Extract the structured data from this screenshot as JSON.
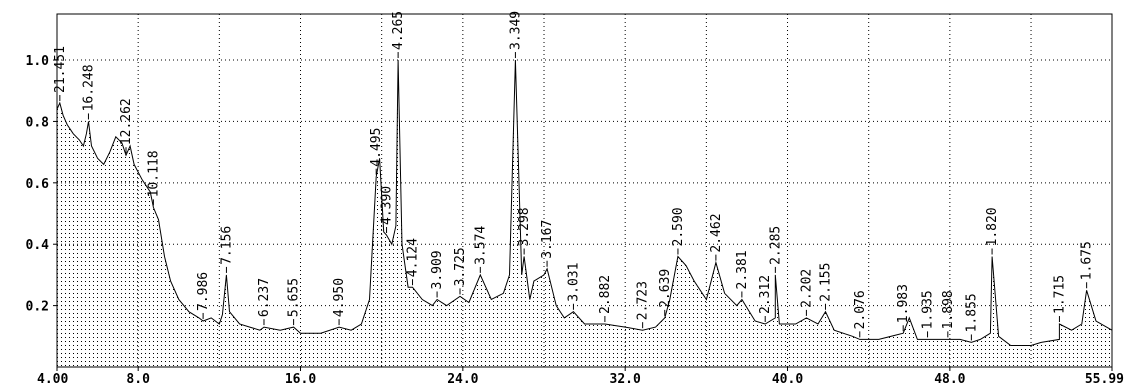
{
  "chart_data": {
    "type": "line",
    "title": "",
    "xlabel": "",
    "ylabel": "",
    "xlim": [
      4.0,
      55.99
    ],
    "ylim": [
      0,
      1.15
    ],
    "grid": true,
    "x_tick_values": [
      4.0,
      8.0,
      16.0,
      24.0,
      32.0,
      40.0,
      48.0,
      55.99
    ],
    "x_tick_labels": [
      "4.00",
      "8.0",
      "16.0",
      "24.0",
      "32.0",
      "40.0",
      "48.0",
      "55.99"
    ],
    "y_tick_values": [
      0.2,
      0.4,
      0.6,
      0.8,
      1.0
    ],
    "y_tick_labels": [
      "0.2",
      "0.4",
      "0.6",
      "0.8",
      "1.0"
    ],
    "series": [
      {
        "points": [
          [
            4.0,
            0.84
          ],
          [
            4.14,
            0.86
          ],
          [
            4.3,
            0.82
          ],
          [
            4.5,
            0.79
          ],
          [
            4.8,
            0.76
          ],
          [
            5.1,
            0.74
          ],
          [
            5.3,
            0.72
          ],
          [
            5.45,
            0.76
          ],
          [
            5.55,
            0.8
          ],
          [
            5.7,
            0.72
          ],
          [
            6.0,
            0.68
          ],
          [
            6.3,
            0.66
          ],
          [
            6.6,
            0.7
          ],
          [
            6.9,
            0.75
          ],
          [
            7.2,
            0.73
          ],
          [
            7.4,
            0.69
          ],
          [
            7.6,
            0.72
          ],
          [
            7.8,
            0.66
          ],
          [
            8.2,
            0.61
          ],
          [
            8.6,
            0.57
          ],
          [
            8.75,
            0.52
          ],
          [
            9.0,
            0.48
          ],
          [
            9.3,
            0.36
          ],
          [
            9.6,
            0.28
          ],
          [
            10.0,
            0.22
          ],
          [
            10.5,
            0.18
          ],
          [
            11.0,
            0.16
          ],
          [
            11.2,
            0.15
          ],
          [
            11.6,
            0.16
          ],
          [
            12.0,
            0.14
          ],
          [
            12.15,
            0.17
          ],
          [
            12.35,
            0.3
          ],
          [
            12.5,
            0.18
          ],
          [
            13.0,
            0.14
          ],
          [
            13.5,
            0.13
          ],
          [
            14.0,
            0.12
          ],
          [
            14.2,
            0.13
          ],
          [
            15.0,
            0.12
          ],
          [
            15.66,
            0.13
          ],
          [
            16.0,
            0.11
          ],
          [
            17.0,
            0.11
          ],
          [
            17.9,
            0.13
          ],
          [
            18.5,
            0.12
          ],
          [
            19.0,
            0.14
          ],
          [
            19.4,
            0.22
          ],
          [
            19.73,
            0.62
          ],
          [
            19.9,
            0.68
          ],
          [
            20.1,
            0.44
          ],
          [
            20.24,
            0.43
          ],
          [
            20.5,
            0.4
          ],
          [
            20.7,
            0.46
          ],
          [
            20.81,
            1.0
          ],
          [
            21.0,
            0.4
          ],
          [
            21.3,
            0.26
          ],
          [
            21.52,
            0.26
          ],
          [
            22.0,
            0.22
          ],
          [
            22.5,
            0.2
          ],
          [
            22.73,
            0.22
          ],
          [
            23.2,
            0.2
          ],
          [
            23.86,
            0.23
          ],
          [
            24.3,
            0.21
          ],
          [
            24.86,
            0.3
          ],
          [
            25.4,
            0.22
          ],
          [
            26.0,
            0.24
          ],
          [
            26.3,
            0.3
          ],
          [
            26.59,
            1.0
          ],
          [
            26.9,
            0.3
          ],
          [
            27.02,
            0.36
          ],
          [
            27.3,
            0.22
          ],
          [
            27.5,
            0.28
          ],
          [
            28.0,
            0.3
          ],
          [
            28.15,
            0.32
          ],
          [
            28.6,
            0.2
          ],
          [
            29.0,
            0.16
          ],
          [
            29.45,
            0.18
          ],
          [
            30.0,
            0.14
          ],
          [
            31.0,
            0.14
          ],
          [
            31.0,
            0.14
          ],
          [
            32.0,
            0.13
          ],
          [
            32.86,
            0.12
          ],
          [
            33.5,
            0.13
          ],
          [
            33.95,
            0.16
          ],
          [
            34.2,
            0.22
          ],
          [
            34.6,
            0.36
          ],
          [
            35.0,
            0.33
          ],
          [
            35.4,
            0.28
          ],
          [
            36.0,
            0.22
          ],
          [
            36.47,
            0.34
          ],
          [
            36.9,
            0.24
          ],
          [
            37.5,
            0.2
          ],
          [
            37.75,
            0.22
          ],
          [
            38.4,
            0.15
          ],
          [
            38.9,
            0.14
          ],
          [
            39.4,
            0.16
          ],
          [
            39.4,
            0.3
          ],
          [
            39.6,
            0.14
          ],
          [
            40.4,
            0.14
          ],
          [
            40.93,
            0.16
          ],
          [
            41.5,
            0.14
          ],
          [
            41.87,
            0.18
          ],
          [
            42.3,
            0.12
          ],
          [
            43.2,
            0.1
          ],
          [
            43.56,
            0.09
          ],
          [
            44.5,
            0.09
          ],
          [
            45.7,
            0.11
          ],
          [
            46.0,
            0.16
          ],
          [
            46.4,
            0.09
          ],
          [
            46.9,
            0.09
          ],
          [
            47.9,
            0.09
          ],
          [
            48.5,
            0.09
          ],
          [
            49.06,
            0.08
          ],
          [
            49.5,
            0.09
          ],
          [
            50.0,
            0.11
          ],
          [
            50.08,
            0.36
          ],
          [
            50.4,
            0.1
          ],
          [
            51.0,
            0.07
          ],
          [
            52.0,
            0.07
          ],
          [
            52.5,
            0.08
          ],
          [
            53.4,
            0.09
          ],
          [
            53.4,
            0.14
          ],
          [
            54.0,
            0.12
          ],
          [
            54.5,
            0.14
          ],
          [
            54.74,
            0.25
          ],
          [
            55.2,
            0.15
          ],
          [
            55.99,
            0.12
          ]
        ]
      }
    ],
    "peak_labels": [
      {
        "label": "21.451",
        "x": 4.14,
        "y": 0.86
      },
      {
        "label": "16.248",
        "x": 5.55,
        "y": 0.8
      },
      {
        "label": "12.262",
        "x": 7.4,
        "y": 0.69
      },
      {
        "label": "10.118",
        "x": 8.75,
        "y": 0.52
      },
      {
        "label": "7.986",
        "x": 11.2,
        "y": 0.15
      },
      {
        "label": "7.156",
        "x": 12.35,
        "y": 0.3
      },
      {
        "label": "6.237",
        "x": 14.2,
        "y": 0.13
      },
      {
        "label": "5.655",
        "x": 15.66,
        "y": 0.13
      },
      {
        "label": "4.950",
        "x": 17.9,
        "y": 0.13
      },
      {
        "label": "4.495",
        "x": 19.73,
        "y": 0.62
      },
      {
        "label": "4.390",
        "x": 20.24,
        "y": 0.43
      },
      {
        "label": "4.265",
        "x": 20.81,
        "y": 1.0
      },
      {
        "label": "4.124",
        "x": 21.52,
        "y": 0.26
      },
      {
        "label": "3.909",
        "x": 22.73,
        "y": 0.22
      },
      {
        "label": "3.725",
        "x": 23.86,
        "y": 0.23
      },
      {
        "label": "3.574",
        "x": 24.86,
        "y": 0.3
      },
      {
        "label": "3.349",
        "x": 26.59,
        "y": 1.0
      },
      {
        "label": "3.298",
        "x": 27.02,
        "y": 0.36
      },
      {
        "label": "3.167",
        "x": 28.15,
        "y": 0.32
      },
      {
        "label": "3.031",
        "x": 29.45,
        "y": 0.18
      },
      {
        "label": "2.882",
        "x": 31.0,
        "y": 0.14
      },
      {
        "label": "2.723",
        "x": 32.86,
        "y": 0.12
      },
      {
        "label": "2.639",
        "x": 33.95,
        "y": 0.16
      },
      {
        "label": "2.590",
        "x": 34.6,
        "y": 0.36
      },
      {
        "label": "2.462",
        "x": 36.47,
        "y": 0.34
      },
      {
        "label": "2.381",
        "x": 37.75,
        "y": 0.22
      },
      {
        "label": "2.312",
        "x": 38.9,
        "y": 0.14
      },
      {
        "label": "2.285",
        "x": 39.4,
        "y": 0.3
      },
      {
        "label": "2.202",
        "x": 40.93,
        "y": 0.16
      },
      {
        "label": "2.155",
        "x": 41.87,
        "y": 0.18
      },
      {
        "label": "2.076",
        "x": 43.56,
        "y": 0.09
      },
      {
        "label": "1.983",
        "x": 45.7,
        "y": 0.11
      },
      {
        "label": "1.935",
        "x": 46.9,
        "y": 0.09
      },
      {
        "label": "1.898",
        "x": 47.9,
        "y": 0.09
      },
      {
        "label": "1.855",
        "x": 49.06,
        "y": 0.08
      },
      {
        "label": "1.820",
        "x": 50.08,
        "y": 0.36
      },
      {
        "label": "1.715",
        "x": 53.4,
        "y": 0.14
      },
      {
        "label": "1.675",
        "x": 54.74,
        "y": 0.25
      }
    ]
  }
}
